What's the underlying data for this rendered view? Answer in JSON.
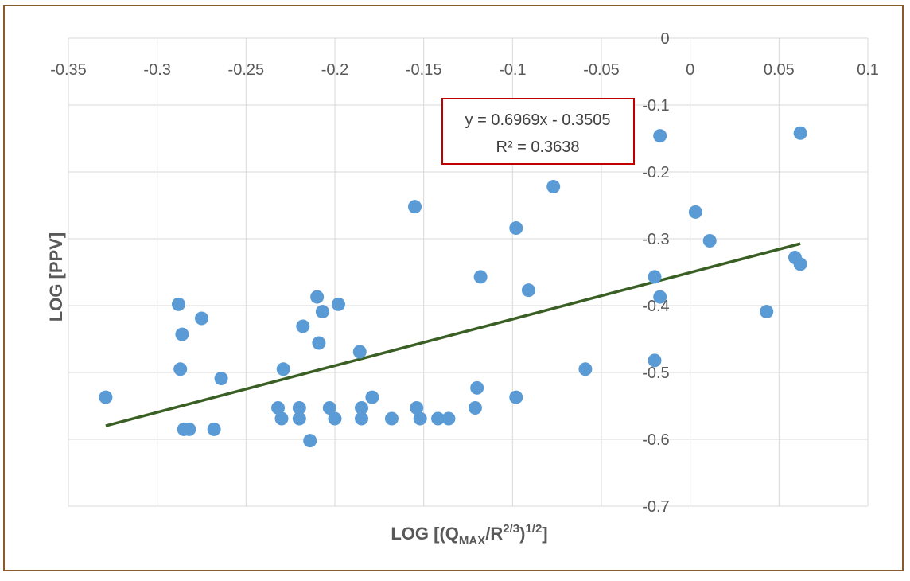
{
  "colors": {
    "frame": "#8B5A2B",
    "gridline": "#d9d9d9",
    "point": "#5b9bd5",
    "trendline": "#3a5f24",
    "equation_box": "#c00000",
    "text": "#595959"
  },
  "chart_data": {
    "type": "scatter",
    "title": "",
    "xlabel": {
      "base": "LOG [(Q",
      "sub": "MAX",
      "mid": "/R",
      "sup1": "2/3",
      "close": ")",
      "sup2": "1/2",
      "end": "]"
    },
    "ylabel": "LOG [PPV]",
    "xlim": [
      -0.35,
      0.1
    ],
    "ylim": [
      -0.7,
      0
    ],
    "x_ticks": [
      -0.35,
      -0.3,
      -0.25,
      -0.2,
      -0.15,
      -0.1,
      -0.05,
      0,
      0.05,
      0.1
    ],
    "y_ticks": [
      0,
      -0.1,
      -0.2,
      -0.3,
      -0.4,
      -0.5,
      -0.6,
      -0.7
    ],
    "x_tick_labels": [
      "-0.35",
      "-0.3",
      "-0.25",
      "-0.2",
      "-0.15",
      "-0.1",
      "-0.05",
      "0",
      "0.05",
      "0.1"
    ],
    "y_tick_labels": [
      "0",
      "-0.1",
      "-0.2",
      "-0.3",
      "-0.4",
      "-0.5",
      "-0.6",
      "-0.7"
    ],
    "x_axis_position": "top",
    "y_axis_position": "at x = 0",
    "grid": true,
    "series": [
      {
        "points": [
          [
            -0.329,
            -0.537
          ],
          [
            -0.288,
            -0.398
          ],
          [
            -0.286,
            -0.443
          ],
          [
            -0.287,
            -0.495
          ],
          [
            -0.285,
            -0.585
          ],
          [
            -0.282,
            -0.585
          ],
          [
            -0.275,
            -0.419
          ],
          [
            -0.268,
            -0.585
          ],
          [
            -0.264,
            -0.509
          ],
          [
            -0.232,
            -0.553
          ],
          [
            -0.23,
            -0.569
          ],
          [
            -0.229,
            -0.495
          ],
          [
            -0.22,
            -0.553
          ],
          [
            -0.22,
            -0.569
          ],
          [
            -0.218,
            -0.431
          ],
          [
            -0.214,
            -0.602
          ],
          [
            -0.21,
            -0.387
          ],
          [
            -0.209,
            -0.456
          ],
          [
            -0.207,
            -0.409
          ],
          [
            -0.203,
            -0.553
          ],
          [
            -0.2,
            -0.569
          ],
          [
            -0.198,
            -0.398
          ],
          [
            -0.186,
            -0.469
          ],
          [
            -0.185,
            -0.553
          ],
          [
            -0.185,
            -0.569
          ],
          [
            -0.179,
            -0.537
          ],
          [
            -0.168,
            -0.569
          ],
          [
            -0.155,
            -0.252
          ],
          [
            -0.154,
            -0.553
          ],
          [
            -0.152,
            -0.569
          ],
          [
            -0.142,
            -0.569
          ],
          [
            -0.136,
            -0.569
          ],
          [
            -0.121,
            -0.553
          ],
          [
            -0.12,
            -0.523
          ],
          [
            -0.118,
            -0.357
          ],
          [
            -0.098,
            -0.284
          ],
          [
            -0.098,
            -0.537
          ],
          [
            -0.091,
            -0.377
          ],
          [
            -0.077,
            -0.222
          ],
          [
            -0.059,
            -0.495
          ],
          [
            -0.02,
            -0.357
          ],
          [
            -0.02,
            -0.482
          ],
          [
            -0.017,
            -0.146
          ],
          [
            -0.017,
            -0.387
          ],
          [
            0.003,
            -0.26
          ],
          [
            0.011,
            -0.303
          ],
          [
            0.043,
            -0.409
          ],
          [
            0.059,
            -0.328
          ],
          [
            0.062,
            -0.338
          ],
          [
            0.062,
            -0.142
          ]
        ]
      }
    ],
    "trendline": {
      "type": "linear",
      "slope": 0.6969,
      "intercept": -0.3505,
      "x_range": [
        -0.329,
        0.062
      ],
      "equation_label": "y = 0.6969x - 0.3505",
      "r2_label": "R² = 0.3638"
    }
  }
}
